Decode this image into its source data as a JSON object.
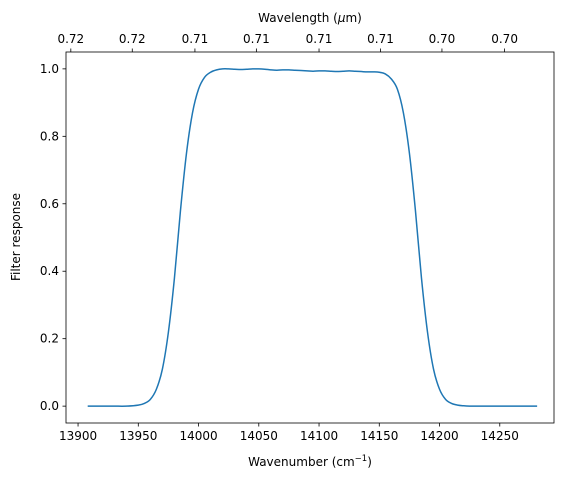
{
  "chart_data": {
    "type": "line",
    "title": "",
    "xlabel": "Wavenumber (cm",
    "xlabel_sup": "−1",
    "xlabel_end": ")",
    "ylabel": "Filter response",
    "x2label": "Wavelength (",
    "x2label_mu": "μ",
    "x2label_end": "m)",
    "xlim": [
      13890,
      14295
    ],
    "ylim": [
      -0.05,
      1.05
    ],
    "grid": false,
    "legend": "none",
    "line_color": "#1f77b4",
    "x_ticks": [
      13900,
      13950,
      14000,
      14050,
      14100,
      14150,
      14200,
      14250
    ],
    "x_tick_labels": [
      "13900",
      "13950",
      "14000",
      "14050",
      "14100",
      "14150",
      "14200",
      "14250"
    ],
    "y_ticks": [
      0.0,
      0.2,
      0.4,
      0.6,
      0.8,
      1.0
    ],
    "y_tick_labels": [
      "0.0",
      "0.2",
      "0.4",
      "0.6",
      "0.8",
      "1.0"
    ],
    "x2_ticks": [
      13894,
      13945,
      13997,
      14048,
      14100,
      14151,
      14202,
      14254
    ],
    "x2_tick_labels": [
      "0.72",
      "0.72",
      "0.71",
      "0.71",
      "0.71",
      "0.71",
      "0.70",
      "0.70"
    ],
    "series": [
      {
        "x": [
          13908,
          13920,
          13930,
          13940,
          13950,
          13955,
          13960,
          13965,
          13970,
          13975,
          13980,
          13985,
          13990,
          13995,
          14000,
          14005,
          14010,
          14015,
          14020,
          14025,
          14030,
          14035,
          14040,
          14045,
          14050,
          14055,
          14060,
          14065,
          14070,
          14075,
          14080,
          14085,
          14090,
          14095,
          14100,
          14105,
          14110,
          14115,
          14120,
          14125,
          14130,
          14135,
          14140,
          14145,
          14150,
          14155,
          14160,
          14165,
          14170,
          14175,
          14180,
          14185,
          14190,
          14195,
          14200,
          14205,
          14210,
          14215,
          14220,
          14225,
          14230,
          14240,
          14250,
          14260,
          14270,
          14281
        ],
        "y": [
          0.0,
          0.0,
          0.0,
          0.0,
          0.003,
          0.008,
          0.02,
          0.05,
          0.11,
          0.22,
          0.38,
          0.58,
          0.75,
          0.87,
          0.94,
          0.975,
          0.99,
          0.997,
          1.0,
          1.0,
          0.999,
          0.998,
          0.999,
          1.0,
          1.0,
          0.999,
          0.997,
          0.996,
          0.997,
          0.997,
          0.996,
          0.995,
          0.994,
          0.993,
          0.994,
          0.994,
          0.993,
          0.992,
          0.993,
          0.994,
          0.993,
          0.992,
          0.991,
          0.991,
          0.99,
          0.985,
          0.97,
          0.94,
          0.87,
          0.75,
          0.58,
          0.38,
          0.22,
          0.11,
          0.05,
          0.02,
          0.008,
          0.003,
          0.001,
          0.0,
          0.0,
          0.0,
          0.0,
          0.0,
          0.0,
          0.0
        ]
      }
    ]
  }
}
